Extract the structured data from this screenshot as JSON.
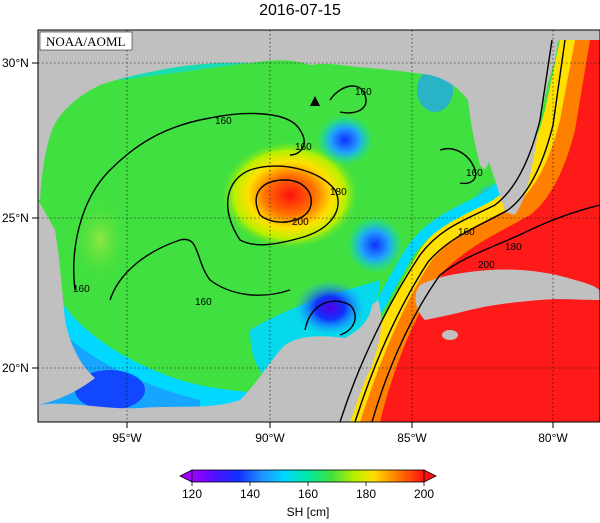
{
  "title": "2016-07-15",
  "credit": "NOAA/AOML",
  "lat_ticks": [
    "30°N",
    "25°N",
    "20°N"
  ],
  "lon_ticks": [
    "95°W",
    "90°W",
    "85°W",
    "80°W"
  ],
  "contour_labels": [
    "160",
    "160",
    "160",
    "160",
    "160",
    "160",
    "160",
    "180",
    "200",
    "180",
    "200",
    "160"
  ],
  "colorbar": {
    "label": "SH [cm]",
    "ticks": [
      "120",
      "140",
      "160",
      "180",
      "200"
    ]
  },
  "marker": "triangle-icon",
  "colors": {
    "land": "#c0c0c0",
    "low": "#1e3cff",
    "mid": "#00e0c0",
    "green": "#40e040",
    "high": "#ff2020"
  }
}
